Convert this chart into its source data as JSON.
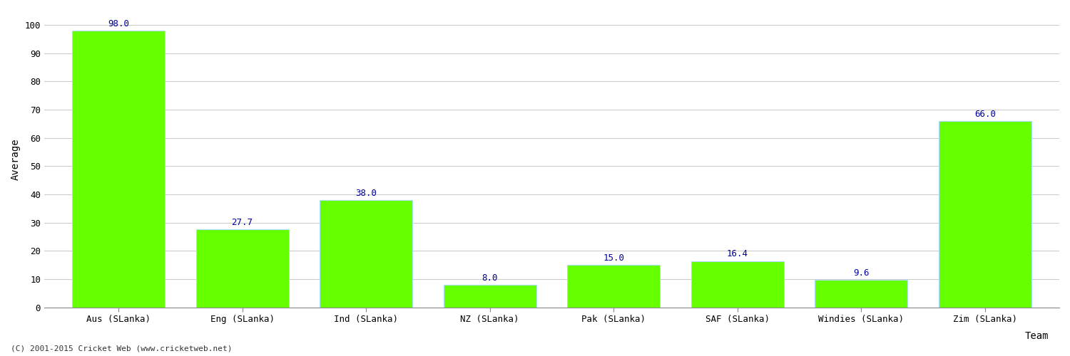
{
  "categories": [
    "Aus (SLanka)",
    "Eng (SLanka)",
    "Ind (SLanka)",
    "NZ (SLanka)",
    "Pak (SLanka)",
    "SAF (SLanka)",
    "Windies (SLanka)",
    "Zim (SLanka)"
  ],
  "values": [
    98.0,
    27.7,
    38.0,
    8.0,
    15.0,
    16.4,
    9.6,
    66.0
  ],
  "bar_color": "#66ff00",
  "bar_edge_color": "#aaddff",
  "value_color": "#000099",
  "xlabel": "Team",
  "ylabel": "Average",
  "ylim": [
    0,
    105
  ],
  "yticks": [
    0,
    10,
    20,
    30,
    40,
    50,
    60,
    70,
    80,
    90,
    100
  ],
  "background_color": "#ffffff",
  "grid_color": "#cccccc",
  "footnote": "(C) 2001-2015 Cricket Web (www.cricketweb.net)",
  "value_fontsize": 9,
  "label_fontsize": 10,
  "tick_fontsize": 9,
  "bar_width": 0.75
}
